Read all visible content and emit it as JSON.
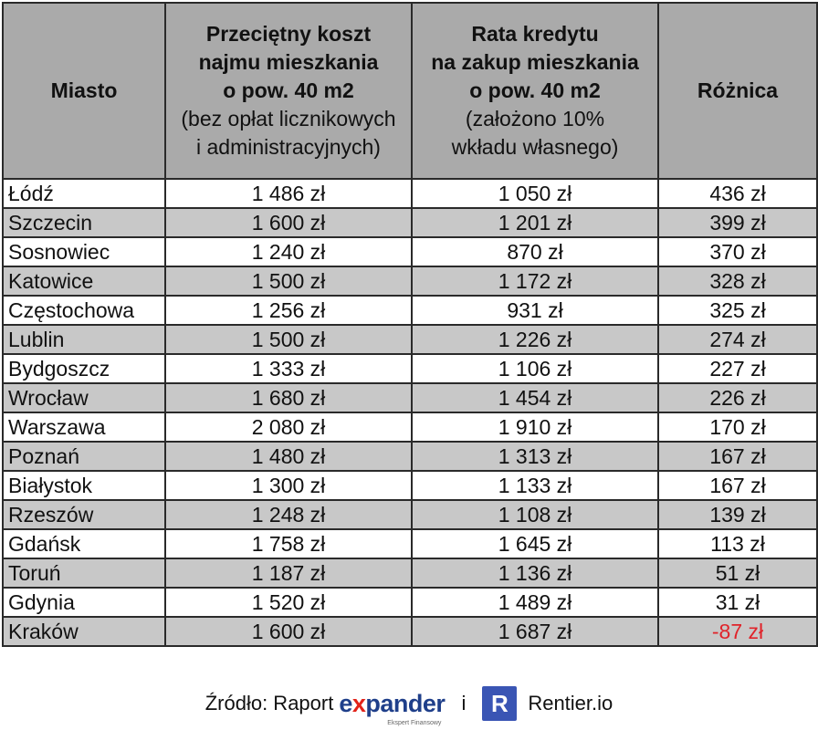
{
  "chart_data": {
    "type": "table",
    "columns": [
      {
        "bold": "Miasto",
        "note": []
      },
      {
        "bold": [
          "Przeciętny koszt",
          "najmu mieszkania",
          "o pow. 40 m2"
        ],
        "note": [
          "(bez opłat licznikowych",
          "i administracyjnych)"
        ]
      },
      {
        "bold": [
          "Rata kredytu",
          "na zakup mieszkania",
          "o pow. 40 m2"
        ],
        "note": [
          "(założono 10%",
          "wkładu własnego)"
        ]
      },
      {
        "bold": "Różnica",
        "note": []
      }
    ],
    "rows": [
      {
        "city": "Łódź",
        "rent": "1 486 zł",
        "loan": "1 050 zł",
        "diff": "436 zł"
      },
      {
        "city": "Szczecin",
        "rent": "1 600 zł",
        "loan": "1 201 zł",
        "diff": "399 zł"
      },
      {
        "city": "Sosnowiec",
        "rent": "1 240 zł",
        "loan": "870 zł",
        "diff": "370 zł"
      },
      {
        "city": "Katowice",
        "rent": "1 500 zł",
        "loan": "1 172 zł",
        "diff": "328 zł"
      },
      {
        "city": "Częstochowa",
        "rent": "1 256 zł",
        "loan": "931 zł",
        "diff": "325 zł"
      },
      {
        "city": "Lublin",
        "rent": "1 500 zł",
        "loan": "1 226 zł",
        "diff": "274 zł"
      },
      {
        "city": "Bydgoszcz",
        "rent": "1 333 zł",
        "loan": "1 106 zł",
        "diff": "227 zł"
      },
      {
        "city": "Wrocław",
        "rent": "1 680 zł",
        "loan": "1 454 zł",
        "diff": "226 zł"
      },
      {
        "city": "Warszawa",
        "rent": "2 080 zł",
        "loan": "1 910 zł",
        "diff": "170 zł"
      },
      {
        "city": "Poznań",
        "rent": "1 480 zł",
        "loan": "1 313 zł",
        "diff": "167 zł"
      },
      {
        "city": "Białystok",
        "rent": "1 300 zł",
        "loan": "1 133 zł",
        "diff": "167 zł"
      },
      {
        "city": "Rzeszów",
        "rent": "1 248 zł",
        "loan": "1 108 zł",
        "diff": "139 zł"
      },
      {
        "city": "Gdańsk",
        "rent": "1 758 zł",
        "loan": "1 645 zł",
        "diff": "113 zł"
      },
      {
        "city": "Toruń",
        "rent": "1 187 zł",
        "loan": "1 136 zł",
        "diff": "51 zł"
      },
      {
        "city": "Gdynia",
        "rent": "1 520 zł",
        "loan": "1 489 zł",
        "diff": "31 zł"
      },
      {
        "city": "Kraków",
        "rent": "1 600 zł",
        "loan": "1 687 zł",
        "diff": "-87 zł"
      }
    ]
  },
  "colors": {
    "header_bg": "#aaaaaa",
    "stripe": "#c8c8c8",
    "negative": "#e0232a",
    "expander_blue": "#1f3f8a",
    "expander_red": "#e2231a",
    "rentier_badge": "#3a55b4"
  },
  "source": {
    "label": "Źródło: Raport",
    "expander_prefix": "e",
    "expander_x": "x",
    "expander_rest": "pander",
    "expander_tagline": "Ekspert Finansowy",
    "separator": "i",
    "rentier_letter": "R",
    "rentier_name": "Rentier.io"
  }
}
